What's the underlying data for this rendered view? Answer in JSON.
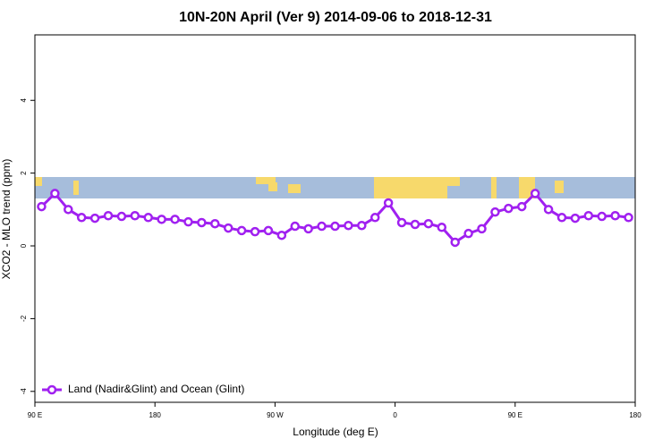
{
  "chart_data": {
    "type": "line",
    "title": "10N-20N April (Ver 9)   2014-09-06 to 2018-12-31",
    "x_label": "Longitude (deg E)",
    "y_label": "XCO2 - MLO trend (ppm)",
    "xlim": [
      90,
      540
    ],
    "xticks": [
      {
        "value": 90,
        "label": "90 E"
      },
      {
        "value": 180,
        "label": "180"
      },
      {
        "value": 270,
        "label": "90 W"
      },
      {
        "value": 360,
        "label": "0"
      },
      {
        "value": 450,
        "label": "90 E"
      },
      {
        "value": 540,
        "label": "180"
      }
    ],
    "ylim": [
      -4.3,
      5.8
    ],
    "yticks": [
      -4,
      -2,
      0,
      2,
      4
    ],
    "legend": "bottom-left",
    "x": [
      95,
      105,
      115,
      125,
      135,
      145,
      155,
      165,
      175,
      185,
      195,
      205,
      215,
      225,
      235,
      245,
      255,
      265,
      275,
      285,
      295,
      305,
      315,
      325,
      335,
      345,
      355,
      365,
      375,
      385,
      395,
      405,
      415,
      425,
      435,
      445,
      455,
      465,
      475,
      485,
      495,
      505,
      515,
      525,
      535
    ],
    "series": [
      {
        "name": "Land (Nadir&Glint) and Ocean (Glint)",
        "color": "#a020f0",
        "values": [
          1.08,
          1.44,
          1.0,
          0.78,
          0.76,
          0.83,
          0.81,
          0.83,
          0.78,
          0.73,
          0.73,
          0.66,
          0.64,
          0.61,
          0.49,
          0.42,
          0.39,
          0.42,
          0.29,
          0.54,
          0.47,
          0.54,
          0.54,
          0.56,
          0.56,
          0.78,
          1.18,
          0.64,
          0.59,
          0.61,
          0.51,
          0.1,
          0.34,
          0.47,
          0.93,
          1.03,
          1.08,
          1.44,
          1.0,
          0.78,
          0.76,
          0.83,
          0.81,
          0.83,
          0.78
        ]
      }
    ]
  }
}
